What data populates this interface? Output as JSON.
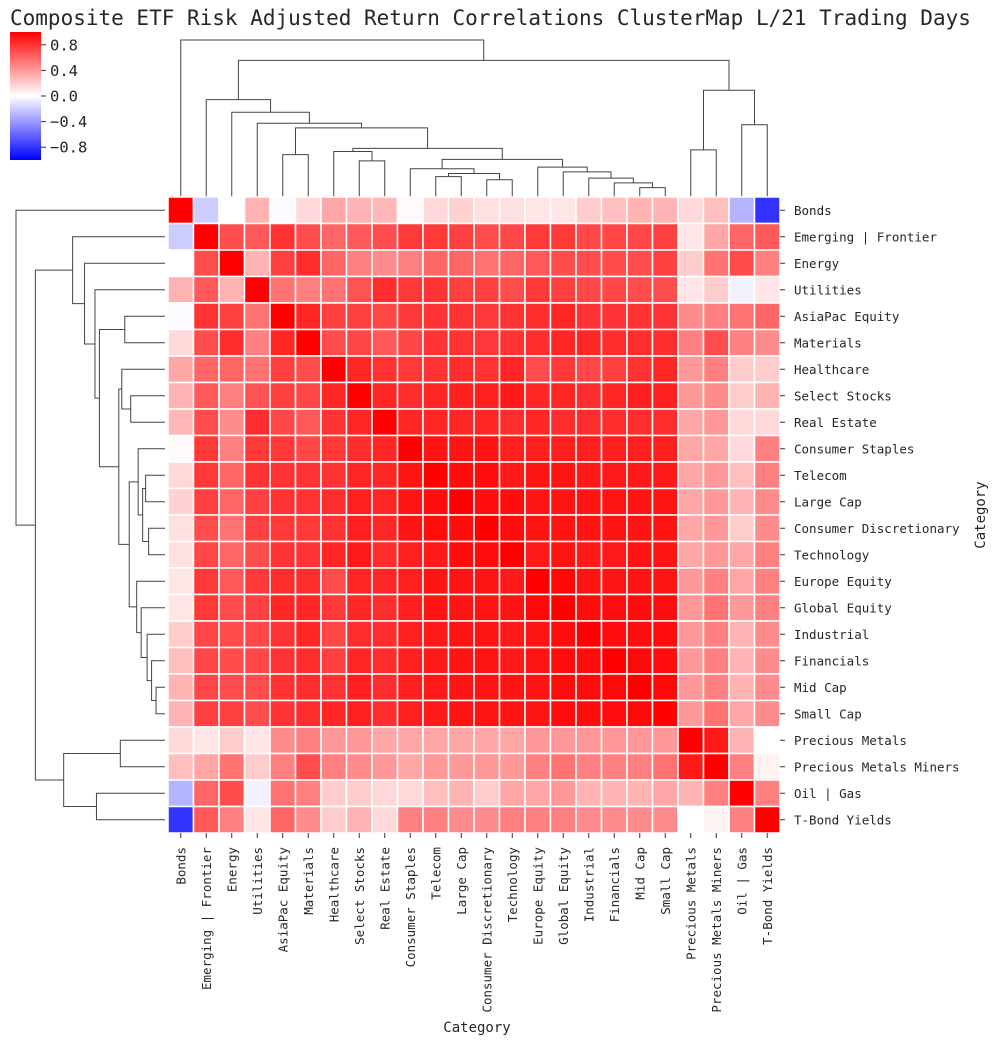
{
  "chart_data": {
    "type": "heatmap",
    "title": "Composite ETF Risk Adjusted Return Correlations ClusterMap L/21 Trading Days",
    "xlabel": "Category",
    "ylabel": "Category",
    "labels": [
      "Bonds",
      "Emerging | Frontier",
      "Energy",
      "Utilities",
      "AsiaPac Equity",
      "Materials",
      "Healthcare",
      "Select Stocks",
      "Real Estate",
      "Consumer Staples",
      "Telecom",
      "Large Cap",
      "Consumer Discretionary",
      "Technology",
      "Europe Equity",
      "Global Equity",
      "Industrial",
      "Financials",
      "Mid Cap",
      "Small Cap",
      "Precious Metals",
      "Precious Metals Miners",
      "Oil | Gas",
      "T-Bond Yields"
    ],
    "vmin": -1.0,
    "vmax": 1.0,
    "colormap": "bwr",
    "colorbar_ticks": [
      0.8,
      0.4,
      0.0,
      -0.4,
      -0.8
    ],
    "colorbar_tick_labels": [
      "0.8",
      "0.4",
      "0.0",
      "−0.4",
      "−0.8"
    ],
    "values": [
      [
        1.0,
        -0.2,
        0.0,
        0.3,
        -0.02,
        0.15,
        0.35,
        0.3,
        0.28,
        0.02,
        0.15,
        0.18,
        0.12,
        0.12,
        0.1,
        0.1,
        0.2,
        0.25,
        0.3,
        0.3,
        0.15,
        0.25,
        -0.3,
        -0.8
      ],
      [
        -0.2,
        1.0,
        0.7,
        0.65,
        0.8,
        0.7,
        0.6,
        0.65,
        0.7,
        0.78,
        0.78,
        0.75,
        0.7,
        0.72,
        0.78,
        0.78,
        0.72,
        0.72,
        0.72,
        0.75,
        0.1,
        0.35,
        0.6,
        0.65
      ],
      [
        0.0,
        0.7,
        1.0,
        0.3,
        0.75,
        0.82,
        0.6,
        0.5,
        0.45,
        0.5,
        0.6,
        0.6,
        0.55,
        0.6,
        0.65,
        0.7,
        0.7,
        0.7,
        0.7,
        0.75,
        0.2,
        0.55,
        0.7,
        0.5
      ],
      [
        0.3,
        0.65,
        0.3,
        1.0,
        0.55,
        0.5,
        0.55,
        0.68,
        0.82,
        0.78,
        0.8,
        0.75,
        0.75,
        0.7,
        0.78,
        0.75,
        0.72,
        0.72,
        0.7,
        0.7,
        0.1,
        0.2,
        -0.05,
        0.1
      ],
      [
        -0.02,
        0.8,
        0.75,
        0.55,
        1.0,
        0.85,
        0.75,
        0.75,
        0.72,
        0.78,
        0.8,
        0.8,
        0.78,
        0.8,
        0.82,
        0.85,
        0.8,
        0.8,
        0.8,
        0.8,
        0.45,
        0.5,
        0.55,
        0.6
      ],
      [
        0.15,
        0.7,
        0.82,
        0.5,
        0.85,
        1.0,
        0.7,
        0.72,
        0.65,
        0.72,
        0.8,
        0.8,
        0.78,
        0.8,
        0.82,
        0.85,
        0.85,
        0.82,
        0.82,
        0.82,
        0.5,
        0.7,
        0.5,
        0.45
      ],
      [
        0.35,
        0.6,
        0.6,
        0.55,
        0.75,
        0.7,
        1.0,
        0.85,
        0.8,
        0.78,
        0.8,
        0.82,
        0.8,
        0.85,
        0.7,
        0.78,
        0.72,
        0.75,
        0.8,
        0.85,
        0.4,
        0.5,
        0.2,
        0.2
      ],
      [
        0.3,
        0.65,
        0.5,
        0.68,
        0.75,
        0.72,
        0.85,
        1.0,
        0.85,
        0.82,
        0.85,
        0.88,
        0.88,
        0.9,
        0.85,
        0.85,
        0.82,
        0.85,
        0.88,
        0.88,
        0.4,
        0.45,
        0.2,
        0.3
      ],
      [
        0.28,
        0.7,
        0.45,
        0.82,
        0.72,
        0.65,
        0.8,
        0.85,
        1.0,
        0.85,
        0.85,
        0.85,
        0.85,
        0.82,
        0.85,
        0.82,
        0.82,
        0.82,
        0.82,
        0.82,
        0.35,
        0.4,
        0.15,
        0.15
      ],
      [
        0.02,
        0.78,
        0.5,
        0.78,
        0.78,
        0.72,
        0.78,
        0.82,
        0.85,
        1.0,
        0.92,
        0.92,
        0.92,
        0.88,
        0.88,
        0.88,
        0.88,
        0.88,
        0.88,
        0.88,
        0.35,
        0.35,
        0.15,
        0.5
      ],
      [
        0.15,
        0.78,
        0.6,
        0.8,
        0.8,
        0.8,
        0.8,
        0.85,
        0.85,
        0.92,
        1.0,
        0.95,
        0.95,
        0.9,
        0.92,
        0.92,
        0.9,
        0.9,
        0.9,
        0.9,
        0.35,
        0.4,
        0.25,
        0.5
      ],
      [
        0.18,
        0.75,
        0.6,
        0.75,
        0.8,
        0.8,
        0.82,
        0.88,
        0.85,
        0.92,
        0.95,
        1.0,
        0.95,
        0.95,
        0.92,
        0.92,
        0.92,
        0.92,
        0.92,
        0.92,
        0.35,
        0.4,
        0.3,
        0.45
      ],
      [
        0.12,
        0.7,
        0.55,
        0.75,
        0.78,
        0.78,
        0.8,
        0.88,
        0.85,
        0.92,
        0.95,
        0.95,
        1.0,
        0.95,
        0.92,
        0.92,
        0.92,
        0.92,
        0.92,
        0.92,
        0.35,
        0.4,
        0.2,
        0.45
      ],
      [
        0.12,
        0.72,
        0.6,
        0.7,
        0.8,
        0.8,
        0.85,
        0.9,
        0.82,
        0.88,
        0.9,
        0.95,
        0.95,
        1.0,
        0.9,
        0.92,
        0.9,
        0.9,
        0.92,
        0.92,
        0.35,
        0.4,
        0.35,
        0.5
      ],
      [
        0.1,
        0.78,
        0.65,
        0.78,
        0.82,
        0.82,
        0.7,
        0.85,
        0.85,
        0.88,
        0.92,
        0.92,
        0.92,
        0.9,
        1.0,
        0.97,
        0.92,
        0.92,
        0.92,
        0.92,
        0.4,
        0.5,
        0.35,
        0.5
      ],
      [
        0.1,
        0.78,
        0.7,
        0.75,
        0.85,
        0.85,
        0.78,
        0.85,
        0.82,
        0.88,
        0.92,
        0.92,
        0.92,
        0.92,
        0.97,
        1.0,
        0.95,
        0.95,
        0.95,
        0.95,
        0.4,
        0.55,
        0.4,
        0.5
      ],
      [
        0.2,
        0.72,
        0.7,
        0.72,
        0.8,
        0.85,
        0.72,
        0.82,
        0.82,
        0.88,
        0.9,
        0.92,
        0.92,
        0.9,
        0.92,
        0.95,
        1.0,
        0.95,
        0.95,
        0.95,
        0.4,
        0.5,
        0.3,
        0.45
      ],
      [
        0.25,
        0.72,
        0.7,
        0.72,
        0.8,
        0.82,
        0.75,
        0.85,
        0.82,
        0.88,
        0.9,
        0.92,
        0.92,
        0.9,
        0.92,
        0.95,
        0.95,
        1.0,
        0.97,
        0.95,
        0.4,
        0.5,
        0.3,
        0.45
      ],
      [
        0.3,
        0.72,
        0.7,
        0.7,
        0.8,
        0.82,
        0.8,
        0.88,
        0.82,
        0.88,
        0.9,
        0.92,
        0.92,
        0.92,
        0.92,
        0.95,
        0.95,
        0.97,
        1.0,
        0.97,
        0.4,
        0.5,
        0.3,
        0.45
      ],
      [
        0.3,
        0.75,
        0.75,
        0.7,
        0.8,
        0.82,
        0.85,
        0.88,
        0.82,
        0.88,
        0.9,
        0.92,
        0.92,
        0.92,
        0.92,
        0.95,
        0.95,
        0.95,
        0.97,
        1.0,
        0.4,
        0.55,
        0.35,
        0.45
      ],
      [
        0.15,
        0.1,
        0.2,
        0.1,
        0.45,
        0.5,
        0.4,
        0.4,
        0.35,
        0.35,
        0.35,
        0.35,
        0.35,
        0.35,
        0.4,
        0.4,
        0.4,
        0.4,
        0.4,
        0.4,
        1.0,
        0.9,
        0.3,
        0.0
      ],
      [
        0.25,
        0.35,
        0.55,
        0.2,
        0.5,
        0.7,
        0.5,
        0.45,
        0.4,
        0.35,
        0.4,
        0.4,
        0.4,
        0.4,
        0.5,
        0.55,
        0.5,
        0.5,
        0.5,
        0.55,
        0.9,
        1.0,
        0.5,
        0.05
      ],
      [
        -0.3,
        0.6,
        0.7,
        -0.05,
        0.55,
        0.5,
        0.2,
        0.2,
        0.15,
        0.15,
        0.25,
        0.3,
        0.2,
        0.35,
        0.35,
        0.4,
        0.3,
        0.3,
        0.3,
        0.35,
        0.3,
        0.5,
        1.0,
        0.5
      ],
      [
        -0.8,
        0.65,
        0.5,
        0.1,
        0.6,
        0.45,
        0.2,
        0.3,
        0.15,
        0.5,
        0.5,
        0.45,
        0.45,
        0.5,
        0.5,
        0.5,
        0.45,
        0.45,
        0.45,
        0.45,
        0.0,
        0.05,
        0.5,
        1.0
      ]
    ]
  }
}
